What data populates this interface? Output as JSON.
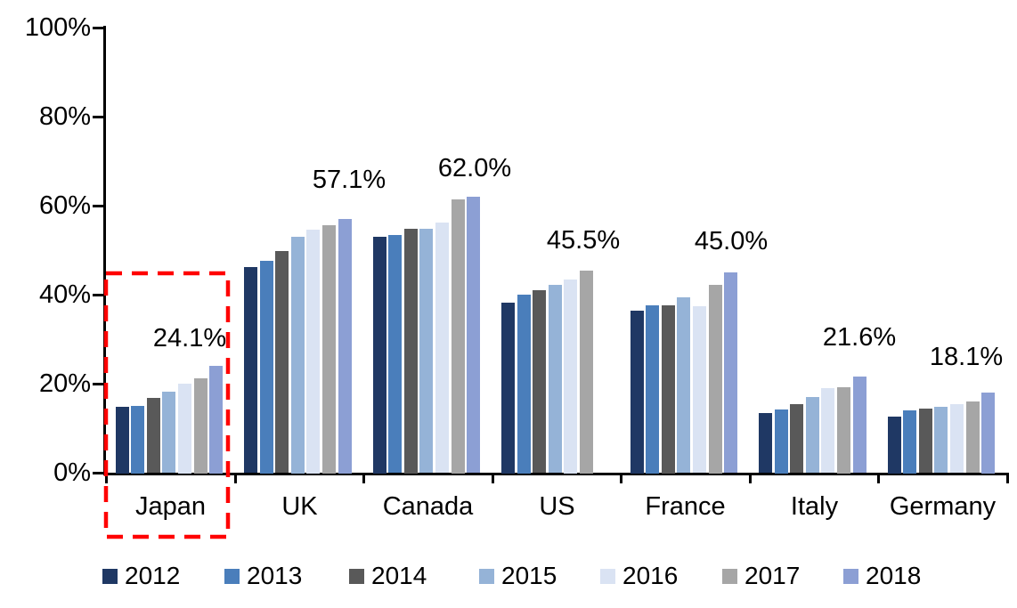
{
  "chart_data": {
    "type": "bar",
    "title": "",
    "categories": [
      "Japan",
      "UK",
      "Canada",
      "US",
      "France",
      "Italy",
      "Germany"
    ],
    "series": [
      {
        "name": "2012",
        "color": "#1F3864",
        "values": [
          14.9,
          46.2,
          53.1,
          38.3,
          36.5,
          13.4,
          12.7
        ]
      },
      {
        "name": "2013",
        "color": "#4A7EBB",
        "values": [
          15.1,
          47.7,
          53.4,
          40.1,
          37.7,
          14.3,
          14.1
        ]
      },
      {
        "name": "2014",
        "color": "#595959",
        "values": [
          16.8,
          49.8,
          54.9,
          41.0,
          37.7,
          15.4,
          14.4
        ]
      },
      {
        "name": "2015",
        "color": "#95B3D7",
        "values": [
          18.2,
          53.1,
          54.8,
          42.2,
          39.4,
          17.0,
          14.8
        ]
      },
      {
        "name": "2016",
        "color": "#DAE3F3",
        "values": [
          20.1,
          54.7,
          56.2,
          43.5,
          37.4,
          19.0,
          15.4
        ]
      },
      {
        "name": "2017",
        "color": "#A6A6A6",
        "values": [
          21.3,
          55.7,
          61.5,
          45.5,
          42.3,
          19.3,
          16.0
        ]
      },
      {
        "name": "2018",
        "color": "#8C9FD4",
        "values": [
          24.1,
          57.1,
          62.0,
          null,
          45.0,
          21.6,
          18.1
        ]
      }
    ],
    "data_labels": [
      {
        "category": "Japan",
        "text": "24.1%",
        "dx": -30,
        "gap": 15
      },
      {
        "category": "UK",
        "text": "57.1%",
        "dx": 5,
        "gap": 28
      },
      {
        "category": "Canada",
        "text": "62.0%",
        "dx": 1,
        "gap": 16
      },
      {
        "category": "US",
        "text": "45.5%",
        "dx": -4,
        "gap": 18
      },
      {
        "category": "France",
        "text": "45.0%",
        "dx": 0,
        "gap": 19
      },
      {
        "category": "Italy",
        "text": "21.6%",
        "dx": 0,
        "gap": 28
      },
      {
        "category": "Germany",
        "text": "18.1%",
        "dx": -25,
        "gap": 24
      }
    ],
    "y_axis": {
      "min": 0,
      "max": 100,
      "tick_step": 20,
      "tick_labels": [
        "0%",
        "20%",
        "40%",
        "60%",
        "80%",
        "100%"
      ],
      "grid": false
    },
    "legend": {
      "position": "bottom",
      "entries": [
        "2012",
        "2013",
        "2014",
        "2015",
        "2016",
        "2017",
        "2018"
      ]
    },
    "highlight_box": {
      "target": "Japan",
      "color": "#FF0000",
      "style": "dashed"
    },
    "axis_color": "#000000",
    "text_color": "#000000"
  }
}
